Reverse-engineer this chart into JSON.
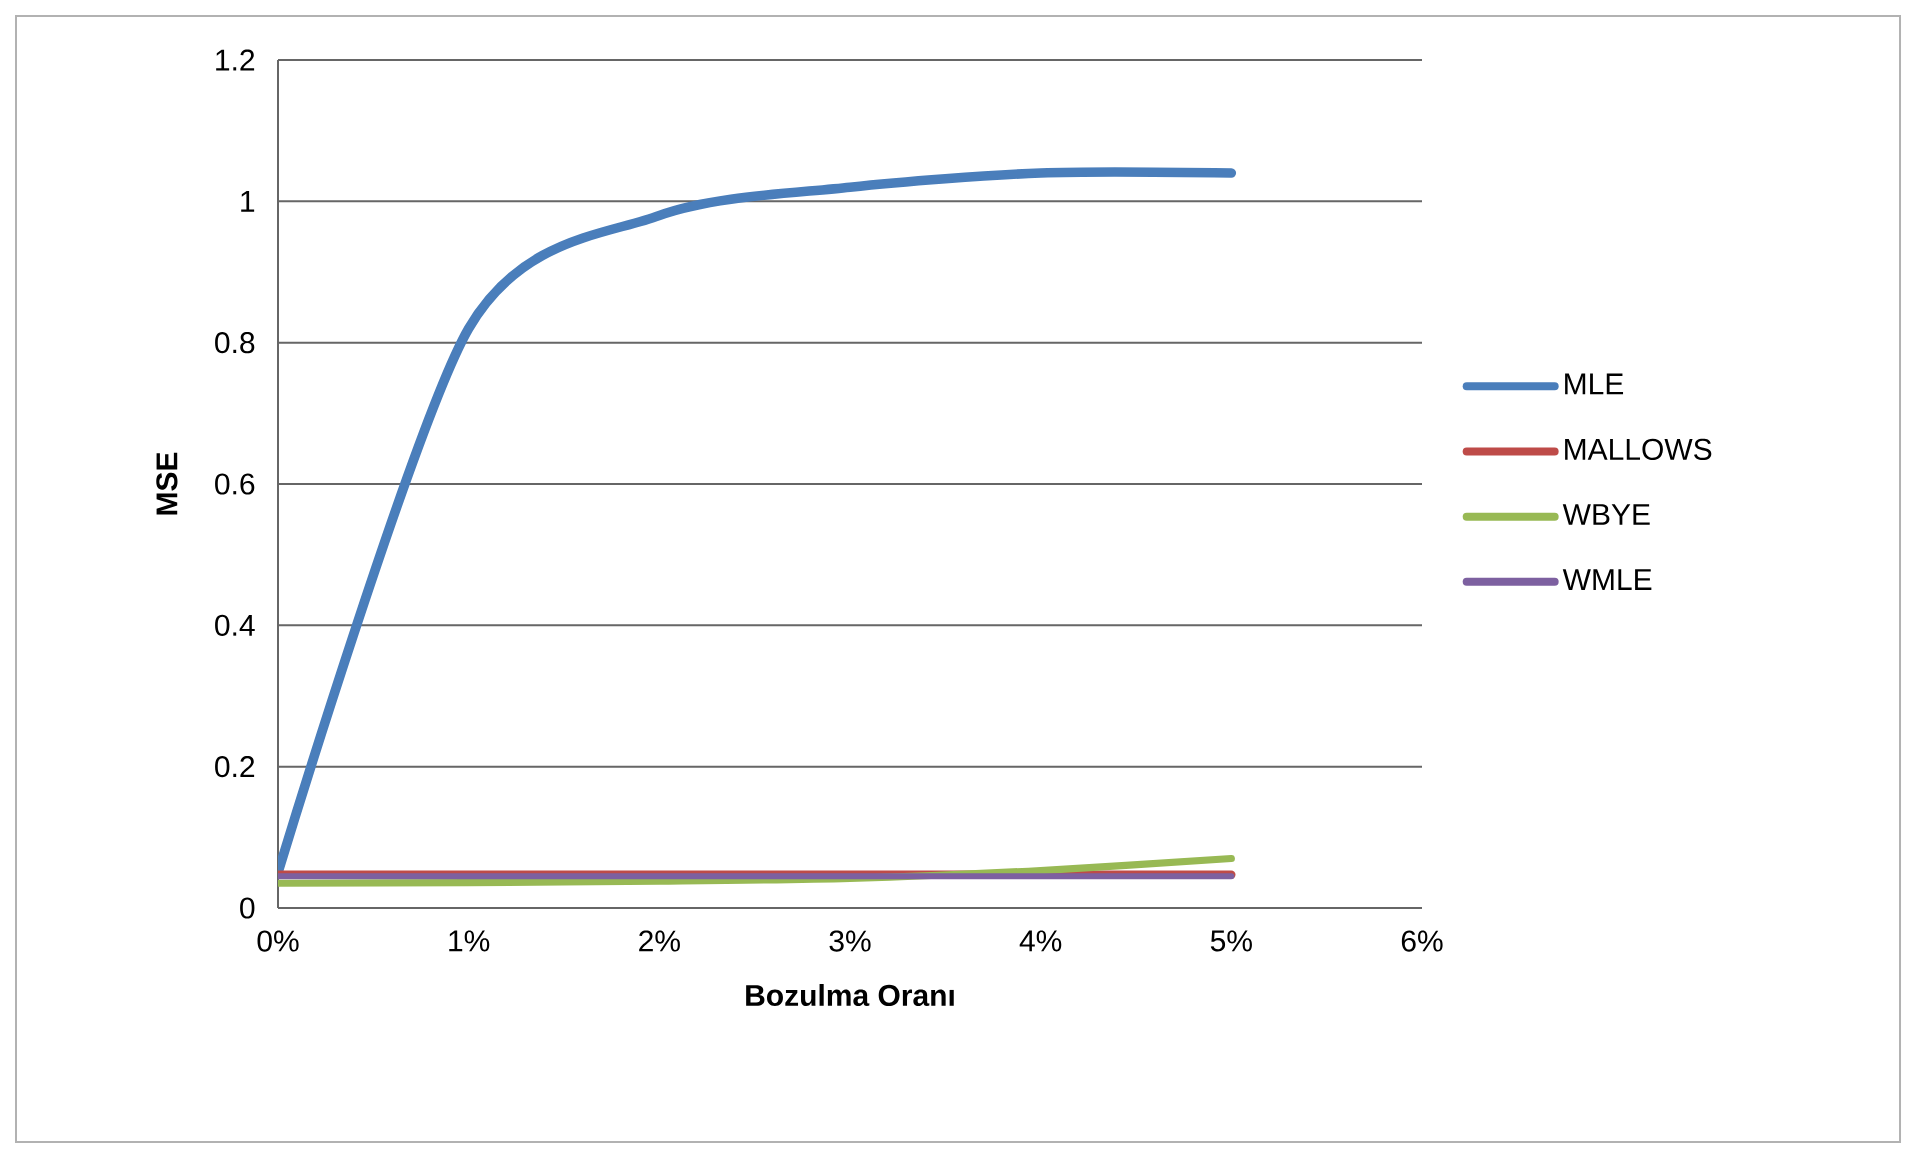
{
  "chart_data": {
    "type": "line",
    "xlabel": "Bozulma Oranı",
    "ylabel": "MSE",
    "x": [
      0,
      1,
      2,
      3,
      4,
      5
    ],
    "series": [
      {
        "name": "MLE",
        "color": "#4a7ebb",
        "values": [
          0.05,
          0.82,
          0.98,
          1.02,
          1.04,
          1.04
        ]
      },
      {
        "name": "MALLOWS",
        "color": "#be4b48",
        "values": [
          0.047,
          0.047,
          0.047,
          0.047,
          0.047,
          0.047
        ]
      },
      {
        "name": "WBYE",
        "color": "#98b954",
        "values": [
          0.035,
          0.036,
          0.038,
          0.042,
          0.053,
          0.07
        ]
      },
      {
        "name": "WMLE",
        "color": "#7d60a0",
        "values": [
          0.045,
          0.045,
          0.045,
          0.045,
          0.045,
          0.045
        ]
      }
    ],
    "xlim": [
      0,
      6
    ],
    "ylim": [
      0,
      1.2
    ],
    "xticks": [
      {
        "value": 0,
        "label": "0%"
      },
      {
        "value": 1,
        "label": "1%"
      },
      {
        "value": 2,
        "label": "2%"
      },
      {
        "value": 3,
        "label": "3%"
      },
      {
        "value": 4,
        "label": "4%"
      },
      {
        "value": 5,
        "label": "5%"
      },
      {
        "value": 6,
        "label": "6%"
      }
    ],
    "yticks": [
      0,
      0.2,
      0.4,
      0.6,
      0.8,
      1,
      1.2
    ],
    "grid": "y",
    "legend": "right",
    "marker": "none",
    "line_style": "solid"
  }
}
